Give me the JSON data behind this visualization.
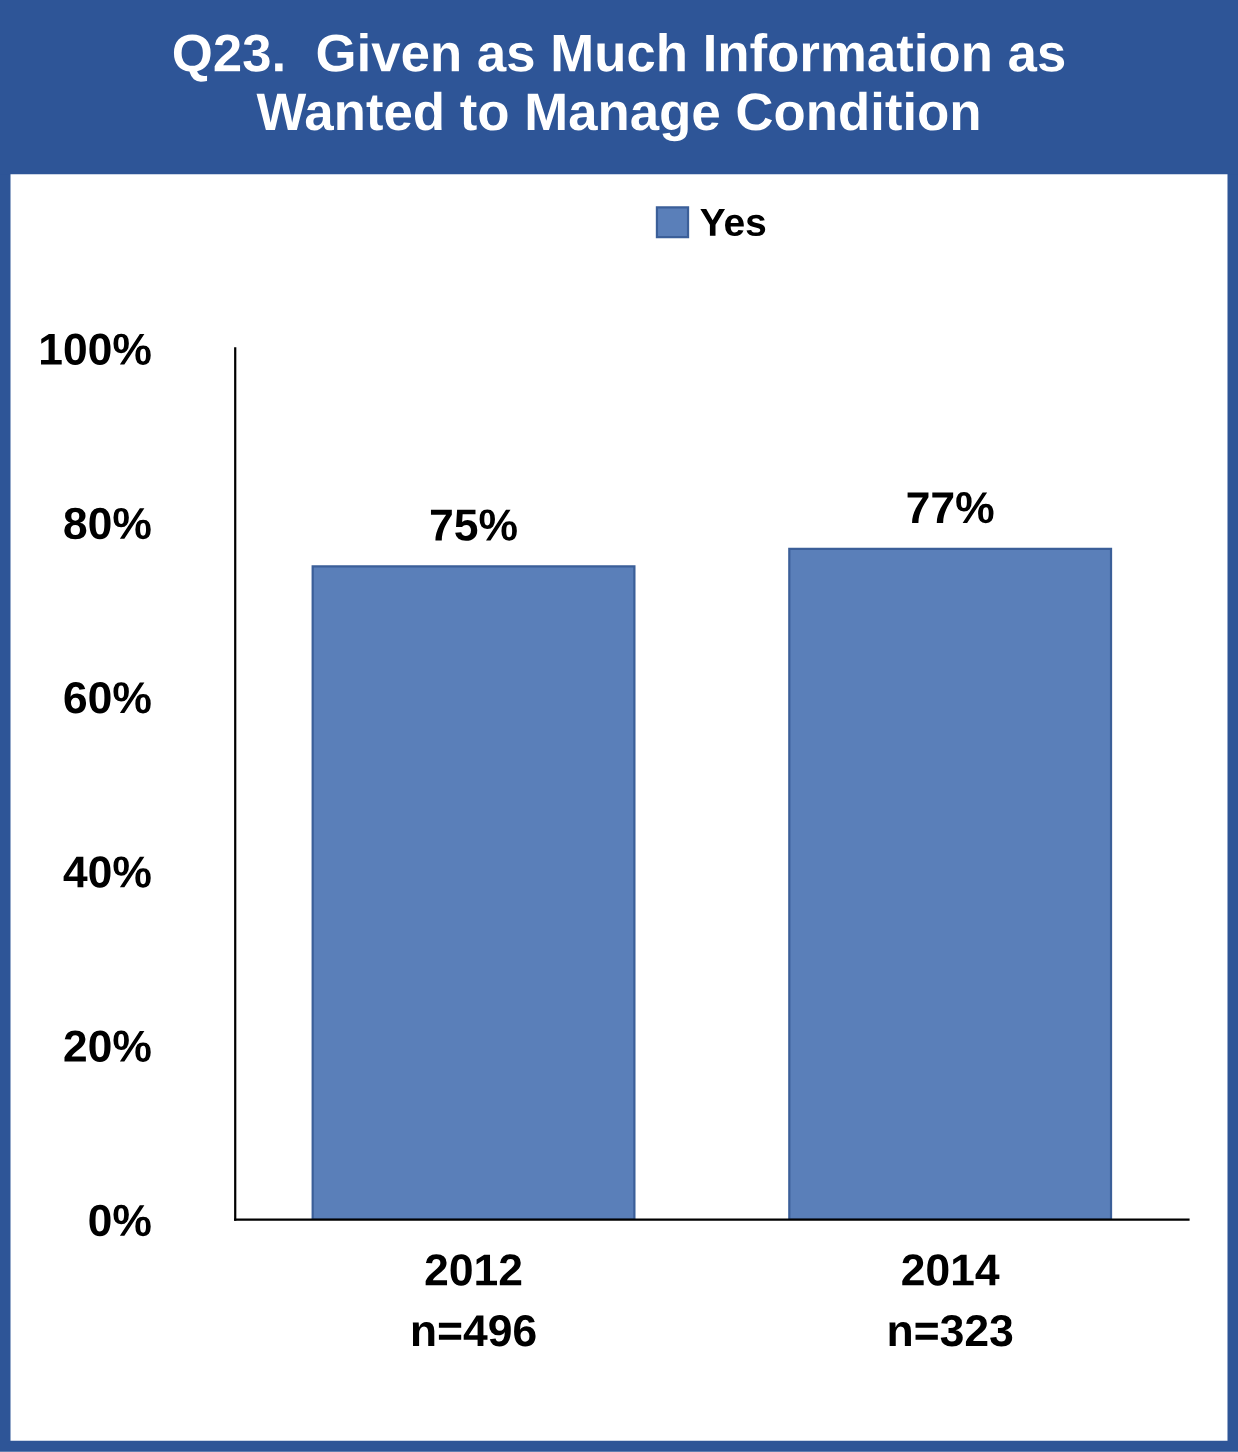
{
  "chart_data": {
    "type": "bar",
    "title": "Q23.  Given as Much Information as\nWanted to Manage Condition",
    "categories": [
      "2012\nn=496",
      "2014\nn=323"
    ],
    "series": [
      {
        "name": "Yes",
        "color": "#5a7fb9",
        "values": [
          75,
          77
        ],
        "value_labels": [
          "75%",
          "77%"
        ]
      }
    ],
    "ylim": [
      0,
      100
    ],
    "yticks": [
      {
        "value": 0,
        "label": "0%"
      },
      {
        "value": 20,
        "label": "20%"
      },
      {
        "value": 40,
        "label": "40%"
      },
      {
        "value": 60,
        "label": "60%"
      },
      {
        "value": 80,
        "label": "80%"
      },
      {
        "value": 100,
        "label": "100%"
      }
    ],
    "grid": false,
    "legend": "top"
  }
}
